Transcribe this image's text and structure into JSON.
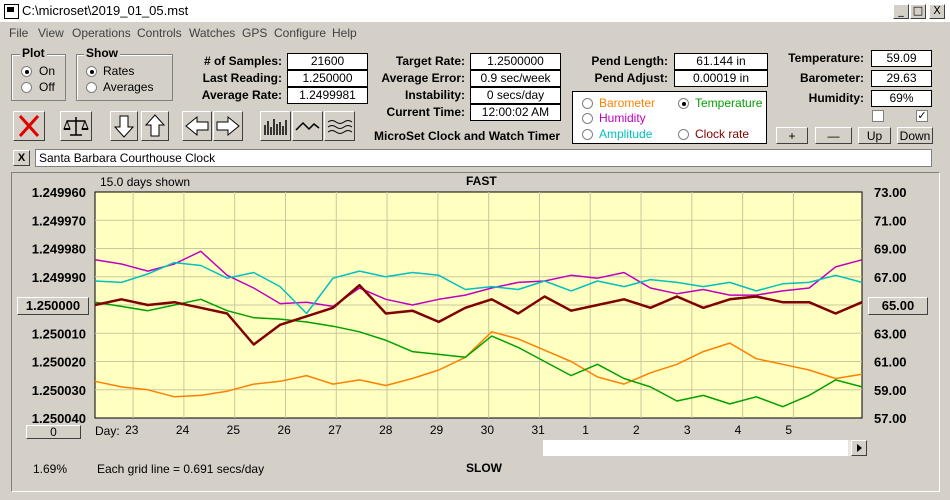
{
  "window": {
    "title": "C:\\microset\\2019_01_05.mst",
    "buttons": [
      "_",
      "□",
      "X"
    ]
  },
  "menu": [
    "File",
    "View",
    "Operations",
    "Controls",
    "Watches",
    "GPS",
    "Configure",
    "Help"
  ],
  "plot": {
    "title": "Plot",
    "on": "On",
    "off": "Off",
    "selected": "On"
  },
  "show": {
    "title": "Show",
    "rates": "Rates",
    "averages": "Averages",
    "selected": "Rates"
  },
  "stats": [
    {
      "label": "# of Samples:",
      "value": "21600"
    },
    {
      "label": "Last Reading:",
      "value": "1.250000"
    },
    {
      "label": "Average Rate:",
      "value": "1.2499981"
    }
  ],
  "timing": [
    {
      "label": "Target Rate:",
      "value": "1.2500000"
    },
    {
      "label": "Average Error:",
      "value": "0.9 sec/week"
    },
    {
      "label": "Instability:",
      "value": "0 secs/day"
    },
    {
      "label": "Current Time:",
      "value": "12:00:02 AM"
    }
  ],
  "app_caption": "MicroSet Clock and Watch Timer",
  "pend": [
    {
      "label": "Pend Length:",
      "value": "61.144 in"
    },
    {
      "label": "Pend Adjust:",
      "value": "0.00019 in"
    }
  ],
  "env": [
    {
      "label": "Temperature:",
      "value": "59.09"
    },
    {
      "label": "Barometer:",
      "value": "29.63"
    },
    {
      "label": "Humidity:",
      "value": "69%"
    }
  ],
  "sensors": {
    "barometer": {
      "label": "Barometer",
      "color": "#ff8000"
    },
    "temperature": {
      "label": "Temperature",
      "color": "#00a000",
      "selected": true
    },
    "humidity": {
      "label": "Humidity",
      "color": "#c000c0"
    },
    "amplitude": {
      "label": "Amplitude",
      "color": "#00c0c0"
    },
    "clock_rate": {
      "label": "Clock rate",
      "color": "#800000"
    }
  },
  "scale_buttons": {
    "plus": "+",
    "minus": "—",
    "up": "Up",
    "down": "Down"
  },
  "checkbox_right": "✓",
  "clock_name": "Santa Barbara Courthouse Clock",
  "close_x": "X",
  "chart_header": {
    "days_shown": "15.0 days shown",
    "top": "FAST",
    "bottom": "SLOW",
    "grid_note": "Each grid line = 0.691 secs/day"
  },
  "center_left": "1.250000",
  "center_right": "65.00",
  "offset_button": "0",
  "day_label": "Day:",
  "percent": "1.69%",
  "chart_data": {
    "type": "line",
    "x": [
      0,
      0.5,
      1,
      1.5,
      2,
      2.5,
      3,
      3.5,
      4,
      4.5,
      5,
      5.5,
      6,
      6.5,
      7,
      7.5,
      8,
      8.5,
      9,
      9.5,
      10,
      10.5,
      11,
      11.5,
      12,
      12.5,
      13,
      13.5,
      14,
      14.5
    ],
    "x_ticks": [
      "23",
      "24",
      "25",
      "26",
      "27",
      "28",
      "29",
      "30",
      "31",
      "1",
      "2",
      "3",
      "4",
      "5"
    ],
    "left_axis": {
      "ticks": [
        "1.249960",
        "1.249970",
        "1.249980",
        "1.249990",
        "1.250000",
        "1.250010",
        "1.250020",
        "1.250030",
        "1.250040"
      ],
      "range": [
        1.24996,
        1.25004
      ],
      "inverted": true
    },
    "right_axis": {
      "ticks": [
        "73.00",
        "71.00",
        "69.00",
        "67.00",
        "65.00",
        "63.00",
        "61.00",
        "59.00",
        "57.00"
      ],
      "range": [
        57,
        73
      ]
    },
    "series": [
      {
        "name": "Clock rate",
        "color": "#800000",
        "axis": "left",
        "values": [
          1.25,
          1.249998,
          1.25,
          1.249999,
          1.250001,
          1.250003,
          1.250014,
          1.250007,
          1.250004,
          1.250001,
          1.249993,
          1.250003,
          1.250002,
          1.250006,
          1.250001,
          1.249998,
          1.250003,
          1.249997,
          1.250002,
          1.25,
          1.249998,
          1.250001,
          1.249997,
          1.250001,
          1.249998,
          1.249997,
          1.249999,
          1.249999,
          1.250003,
          1.249999
        ]
      },
      {
        "name": "Temperature",
        "color": "#00a000",
        "axis": "right",
        "values": [
          65.2,
          64.9,
          64.6,
          65.0,
          65.4,
          64.6,
          64.1,
          64.0,
          63.8,
          63.5,
          63.1,
          62.5,
          61.7,
          61.5,
          61.3,
          62.8,
          62.0,
          61.0,
          60.0,
          60.8,
          59.8,
          59.2,
          58.2,
          58.6,
          58.0,
          58.5,
          57.8,
          58.6,
          59.7,
          59.2
        ]
      },
      {
        "name": "Humidity",
        "color": "#c000c0",
        "axis": "right",
        "values": [
          68.2,
          67.9,
          67.4,
          67.9,
          68.8,
          67.1,
          66.2,
          65.1,
          65.2,
          64.9,
          66.2,
          65.4,
          65.0,
          65.4,
          65.7,
          66.2,
          66.6,
          66.7,
          67.1,
          66.9,
          67.3,
          66.2,
          65.8,
          66.1,
          65.7,
          65.7,
          66.0,
          66.2,
          67.7,
          68.2
        ]
      },
      {
        "name": "Amplitude",
        "color": "#00c0c0",
        "axis": "right",
        "values": [
          66.7,
          66.6,
          67.2,
          68.0,
          67.8,
          66.9,
          67.3,
          66.3,
          64.4,
          66.9,
          67.4,
          67.0,
          67.3,
          67.1,
          66.1,
          66.3,
          66.1,
          66.7,
          66.0,
          66.7,
          66.3,
          66.8,
          66.6,
          66.3,
          66.6,
          66.0,
          66.5,
          66.6,
          67.1,
          66.6
        ]
      },
      {
        "name": "Barometer",
        "color": "#ff8000",
        "axis": "right",
        "values": [
          59.6,
          59.2,
          59.0,
          58.5,
          58.6,
          58.9,
          59.4,
          59.6,
          60.0,
          59.4,
          59.7,
          59.3,
          59.8,
          60.4,
          61.3,
          63.1,
          62.6,
          61.8,
          61.0,
          59.9,
          59.4,
          60.2,
          60.8,
          61.7,
          62.3,
          61.2,
          60.8,
          60.4,
          59.8,
          60.1
        ]
      }
    ]
  }
}
